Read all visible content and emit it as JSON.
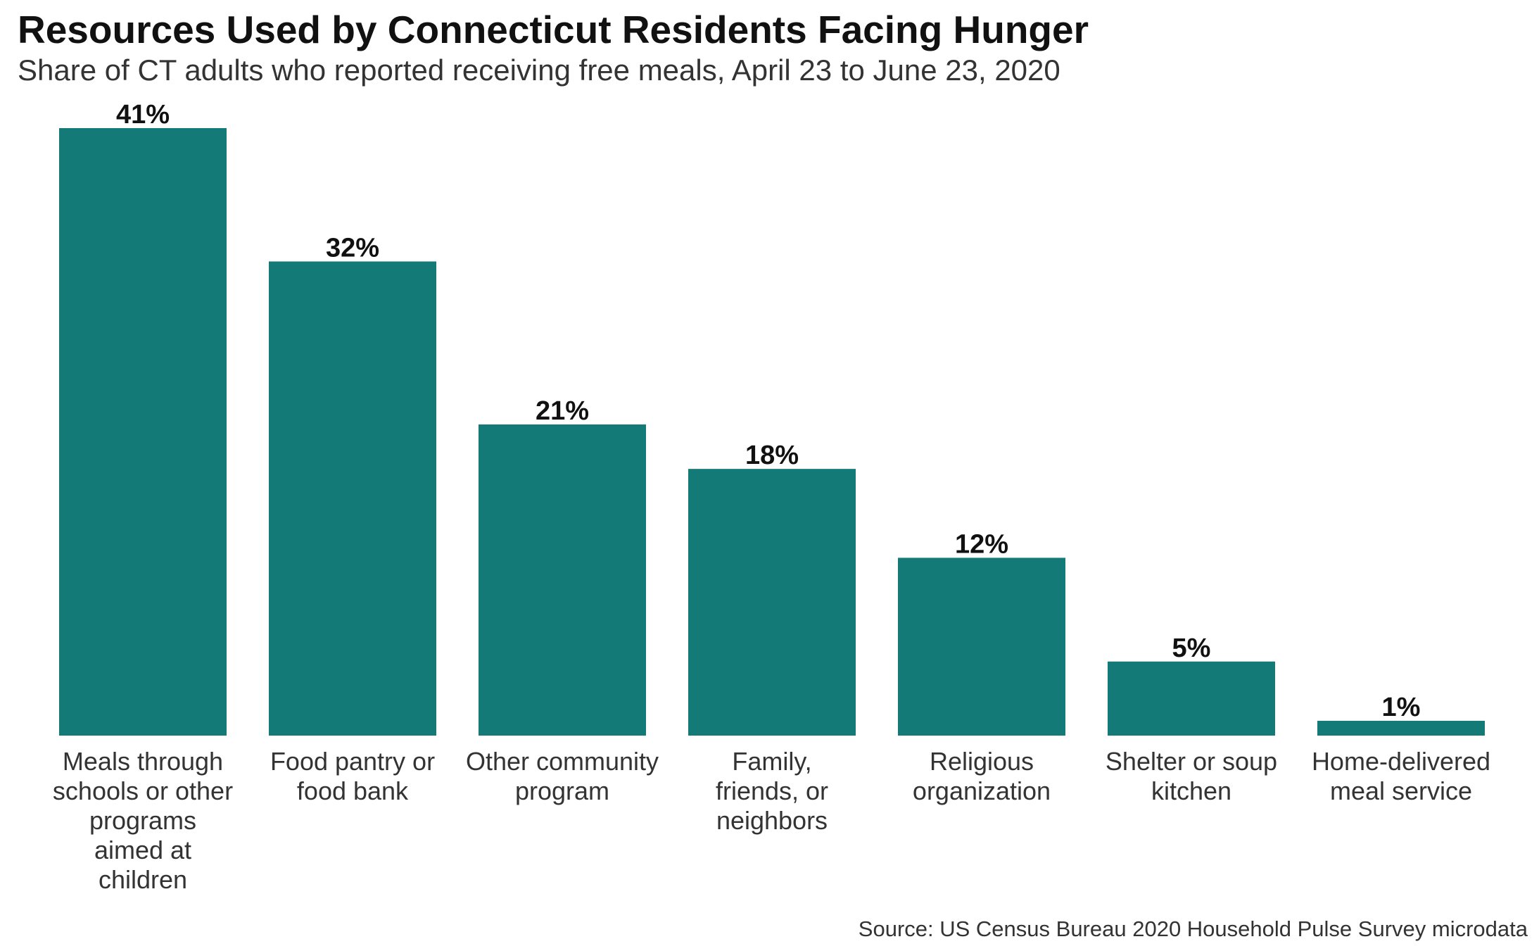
{
  "title": "Resources Used by Connecticut Residents Facing Hunger",
  "subtitle": "Share of CT adults who reported receiving free meals, April 23 to June 23, 2020",
  "source": "Source: US Census Bureau 2020 Household Pulse Survey microdata",
  "colors": {
    "bar": "#137a78",
    "value_label": "#111111",
    "axis_text": "#333333"
  },
  "chart_data": {
    "type": "bar",
    "title": "Resources Used by Connecticut Residents Facing Hunger",
    "subtitle": "Share of CT adults who reported receiving free meals, April 23 to June 23, 2020",
    "xlabel": "",
    "ylabel": "",
    "ylim": [
      0,
      41
    ],
    "grid": false,
    "categories": [
      "Meals through schools or other programs aimed at children",
      "Food pantry or food bank",
      "Other community program",
      "Family, friends, or neighbors",
      "Religious organization",
      "Shelter or soup kitchen",
      "Home-delivered meal service"
    ],
    "values": [
      41,
      32,
      21,
      18,
      12,
      5,
      1
    ],
    "data_labels": [
      "41%",
      "32%",
      "21%",
      "18%",
      "12%",
      "5%",
      "1%"
    ]
  }
}
